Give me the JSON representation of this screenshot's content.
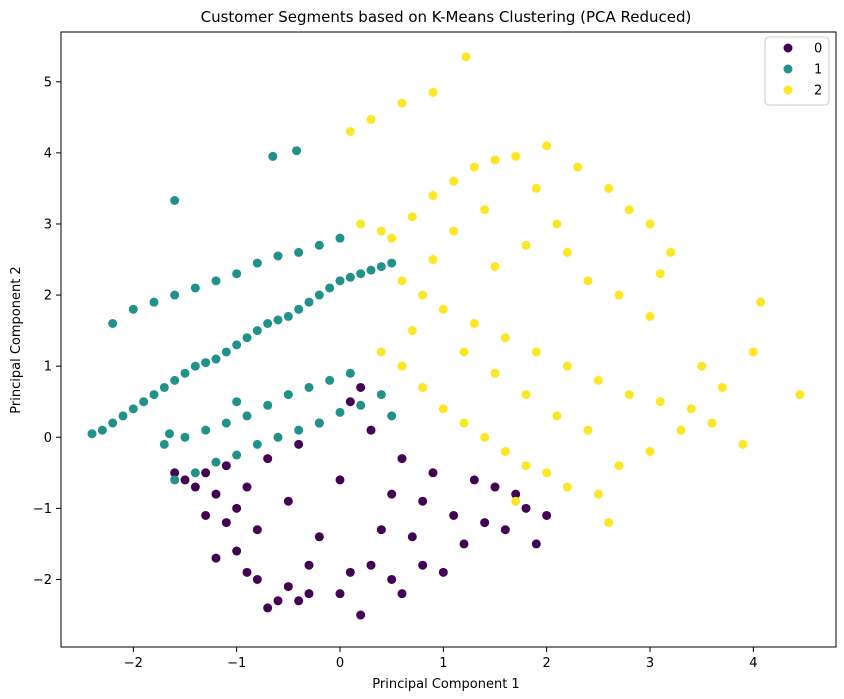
{
  "chart_data": {
    "type": "scatter",
    "title": "Customer Segments based on K-Means Clustering (PCA Reduced)",
    "xlabel": "Principal Component 1",
    "ylabel": "Principal Component 2",
    "xlim": [
      -2.7,
      4.8
    ],
    "ylim": [
      -2.95,
      5.7
    ],
    "xticks": [
      -2,
      -1,
      0,
      1,
      2,
      3,
      4
    ],
    "yticks": [
      -2,
      -1,
      0,
      1,
      2,
      3,
      4,
      5
    ],
    "x_tick_labels": [
      "−2",
      "−1",
      "0",
      "1",
      "2",
      "3",
      "4"
    ],
    "y_tick_labels": [
      "−2",
      "−1",
      "0",
      "1",
      "2",
      "3",
      "4",
      "5"
    ],
    "legend_position": "top-right",
    "grid": false,
    "series": [
      {
        "name": "0",
        "color": "#440154",
        "points": [
          [
            -1.6,
            -0.5
          ],
          [
            -1.5,
            -0.6
          ],
          [
            -1.4,
            -0.7
          ],
          [
            -1.3,
            -0.5
          ],
          [
            -1.2,
            -0.8
          ],
          [
            -1.1,
            -0.4
          ],
          [
            -1.0,
            -1.0
          ],
          [
            -0.9,
            -0.7
          ],
          [
            -0.8,
            -1.3
          ],
          [
            -0.7,
            -0.3
          ],
          [
            -1.1,
            -1.2
          ],
          [
            -1.3,
            -1.1
          ],
          [
            -0.6,
            -2.3
          ],
          [
            -0.7,
            -2.4
          ],
          [
            -0.5,
            -2.1
          ],
          [
            -0.4,
            -2.3
          ],
          [
            -0.3,
            -2.2
          ],
          [
            0.0,
            -2.2
          ],
          [
            0.2,
            -2.5
          ],
          [
            0.1,
            -1.9
          ],
          [
            0.3,
            -1.8
          ],
          [
            0.5,
            -2.0
          ],
          [
            0.6,
            -2.2
          ],
          [
            0.8,
            -1.8
          ],
          [
            1.0,
            -1.9
          ],
          [
            1.2,
            -1.5
          ],
          [
            1.4,
            -1.2
          ],
          [
            1.9,
            -1.5
          ],
          [
            2.0,
            -1.1
          ],
          [
            1.7,
            -0.8
          ],
          [
            1.5,
            -0.7
          ],
          [
            1.3,
            -0.6
          ],
          [
            0.9,
            -0.5
          ],
          [
            0.6,
            -0.3
          ],
          [
            0.3,
            0.1
          ],
          [
            0.1,
            0.5
          ],
          [
            0.2,
            0.7
          ],
          [
            -0.2,
            0.2
          ],
          [
            -0.4,
            -0.1
          ],
          [
            -0.8,
            -2.0
          ],
          [
            -1.0,
            -1.6
          ],
          [
            -0.9,
            -1.9
          ],
          [
            -0.2,
            -1.4
          ],
          [
            0.4,
            -1.3
          ],
          [
            0.7,
            -1.4
          ],
          [
            1.1,
            -1.1
          ],
          [
            -0.5,
            -0.9
          ],
          [
            0.0,
            -0.6
          ],
          [
            0.5,
            -0.8
          ],
          [
            1.6,
            -1.3
          ],
          [
            -1.2,
            -1.7
          ],
          [
            -0.3,
            -1.8
          ],
          [
            0.8,
            -0.9
          ],
          [
            1.8,
            -1.0
          ]
        ]
      },
      {
        "name": "1",
        "color": "#21918c",
        "points": [
          [
            -2.4,
            0.05
          ],
          [
            -2.3,
            0.1
          ],
          [
            -2.2,
            0.2
          ],
          [
            -2.1,
            0.3
          ],
          [
            -2.0,
            0.4
          ],
          [
            -1.9,
            0.5
          ],
          [
            -1.8,
            0.6
          ],
          [
            -1.7,
            0.7
          ],
          [
            -1.6,
            0.8
          ],
          [
            -1.5,
            0.9
          ],
          [
            -1.4,
            1.0
          ],
          [
            -1.3,
            1.05
          ],
          [
            -1.2,
            1.1
          ],
          [
            -1.1,
            1.2
          ],
          [
            -1.0,
            1.3
          ],
          [
            -0.9,
            1.4
          ],
          [
            -0.8,
            1.5
          ],
          [
            -0.7,
            1.6
          ],
          [
            -0.6,
            1.65
          ],
          [
            -0.5,
            1.7
          ],
          [
            -0.4,
            1.8
          ],
          [
            -0.3,
            1.9
          ],
          [
            -0.2,
            2.0
          ],
          [
            -0.1,
            2.1
          ],
          [
            0.0,
            2.2
          ],
          [
            0.1,
            2.25
          ],
          [
            0.2,
            2.3
          ],
          [
            0.3,
            2.35
          ],
          [
            0.4,
            2.4
          ],
          [
            0.5,
            2.45
          ],
          [
            -2.2,
            1.6
          ],
          [
            -2.0,
            1.8
          ],
          [
            -1.8,
            1.9
          ],
          [
            -1.6,
            2.0
          ],
          [
            -1.4,
            2.1
          ],
          [
            -1.2,
            2.2
          ],
          [
            -1.0,
            2.3
          ],
          [
            -0.8,
            2.45
          ],
          [
            -0.6,
            2.55
          ],
          [
            -0.4,
            2.6
          ],
          [
            -0.2,
            2.7
          ],
          [
            0.0,
            2.8
          ],
          [
            -1.6,
            3.33
          ],
          [
            -0.65,
            3.95
          ],
          [
            -0.42,
            4.03
          ],
          [
            -1.7,
            -0.1
          ],
          [
            -1.5,
            0.0
          ],
          [
            -1.3,
            0.1
          ],
          [
            -1.1,
            0.2
          ],
          [
            -0.9,
            0.3
          ],
          [
            -0.7,
            0.45
          ],
          [
            -0.5,
            0.6
          ],
          [
            -0.3,
            0.7
          ],
          [
            -0.1,
            0.8
          ],
          [
            0.1,
            0.9
          ],
          [
            -1.6,
            -0.6
          ],
          [
            -1.4,
            -0.5
          ],
          [
            -1.2,
            -0.35
          ],
          [
            -1.0,
            -0.25
          ],
          [
            -0.8,
            -0.1
          ],
          [
            -0.6,
            0.0
          ],
          [
            -0.4,
            0.1
          ],
          [
            -0.2,
            0.2
          ],
          [
            0.0,
            0.35
          ],
          [
            0.2,
            0.45
          ],
          [
            0.4,
            0.6
          ],
          [
            -1.65,
            0.05
          ],
          [
            -1.0,
            0.5
          ],
          [
            0.5,
            0.3
          ]
        ]
      },
      {
        "name": "2",
        "color": "#fde725",
        "points": [
          [
            0.5,
            2.8
          ],
          [
            0.7,
            3.1
          ],
          [
            0.9,
            3.4
          ],
          [
            1.1,
            3.6
          ],
          [
            1.3,
            3.8
          ],
          [
            1.5,
            3.9
          ],
          [
            1.7,
            3.95
          ],
          [
            2.0,
            4.1
          ],
          [
            2.3,
            3.8
          ],
          [
            2.6,
            3.5
          ],
          [
            2.8,
            3.2
          ],
          [
            3.0,
            3.0
          ],
          [
            3.2,
            2.6
          ],
          [
            3.1,
            2.3
          ],
          [
            0.1,
            4.3
          ],
          [
            0.3,
            4.47
          ],
          [
            0.6,
            4.7
          ],
          [
            0.9,
            4.85
          ],
          [
            1.22,
            5.35
          ],
          [
            0.2,
            3.0
          ],
          [
            0.4,
            2.9
          ],
          [
            0.6,
            2.2
          ],
          [
            0.8,
            2.0
          ],
          [
            1.0,
            1.8
          ],
          [
            1.3,
            1.6
          ],
          [
            1.6,
            1.4
          ],
          [
            1.9,
            1.2
          ],
          [
            2.2,
            1.0
          ],
          [
            2.5,
            0.8
          ],
          [
            2.8,
            0.6
          ],
          [
            3.1,
            0.5
          ],
          [
            3.4,
            0.4
          ],
          [
            3.7,
            0.7
          ],
          [
            4.0,
            1.2
          ],
          [
            4.07,
            1.9
          ],
          [
            4.45,
            0.6
          ],
          [
            0.4,
            1.2
          ],
          [
            0.6,
            1.0
          ],
          [
            0.8,
            0.7
          ],
          [
            1.0,
            0.4
          ],
          [
            1.2,
            0.2
          ],
          [
            1.4,
            0.0
          ],
          [
            1.6,
            -0.2
          ],
          [
            1.8,
            -0.4
          ],
          [
            2.0,
            -0.5
          ],
          [
            2.2,
            -0.7
          ],
          [
            2.5,
            -0.8
          ],
          [
            2.7,
            -0.4
          ],
          [
            3.0,
            -0.2
          ],
          [
            3.3,
            0.1
          ],
          [
            3.6,
            0.2
          ],
          [
            3.9,
            -0.1
          ],
          [
            1.7,
            -0.9
          ],
          [
            2.6,
            -1.2
          ],
          [
            1.5,
            2.4
          ],
          [
            1.8,
            2.7
          ],
          [
            2.1,
            3.0
          ],
          [
            2.4,
            2.2
          ],
          [
            2.7,
            2.0
          ],
          [
            3.0,
            1.7
          ],
          [
            1.2,
            1.2
          ],
          [
            1.5,
            0.9
          ],
          [
            1.8,
            0.6
          ],
          [
            2.1,
            0.3
          ],
          [
            2.4,
            0.1
          ],
          [
            3.5,
            1.0
          ],
          [
            0.9,
            2.5
          ],
          [
            1.1,
            2.9
          ],
          [
            1.4,
            3.2
          ],
          [
            1.9,
            3.5
          ],
          [
            2.2,
            2.6
          ],
          [
            0.7,
            1.5
          ]
        ]
      }
    ]
  }
}
